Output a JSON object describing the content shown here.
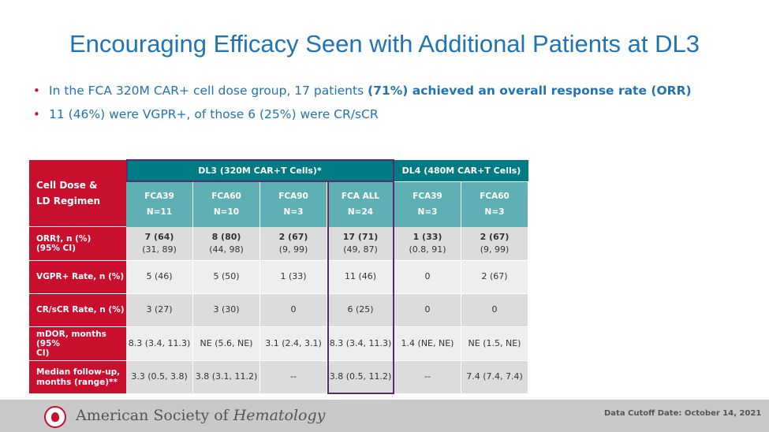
{
  "title": "Encouraging Efficacy Seen with Additional Patients at DL3",
  "bullets": [
    {
      "normal": "In the FCA 320M CAR+ cell dose group, 17 patients ",
      "bold": "(71%) achieved an overall response rate (ORR)"
    },
    {
      "normal": "11 (46%) were VGPR+, of those 6 (25%) were CR/sCR",
      "bold": ""
    }
  ],
  "table": {
    "corner_label": [
      "Cell Dose &",
      "LD Regimen"
    ],
    "group_headers": [
      "DL3 (320M CAR+T Cells)*",
      "DL4 (480M CAR+T Cells)"
    ],
    "columns": [
      {
        "name": "FCA39",
        "n": "N=11"
      },
      {
        "name": "FCA60",
        "n": "N=10"
      },
      {
        "name": "FCA90",
        "n": "N=3"
      },
      {
        "name": "FCA ALL",
        "n": "N=24"
      },
      {
        "name": "FCA39",
        "n": "N=3"
      },
      {
        "name": "FCA60",
        "n": "N=3"
      }
    ],
    "rows": [
      {
        "label": [
          "ORR†, n (%)",
          "(95% CI)"
        ],
        "cells": [
          [
            "7 (64)",
            "(31, 89)"
          ],
          [
            "8 (80)",
            "(44, 98)"
          ],
          [
            "2 (67)",
            "(9, 99)"
          ],
          [
            "17 (71)",
            "(49, 87)"
          ],
          [
            "1 (33)",
            "(0.8, 91)"
          ],
          [
            "2 (67)",
            "(9, 99)"
          ]
        ]
      },
      {
        "label": [
          "VGPR+ Rate, n (%)"
        ],
        "cells": [
          [
            "5 (46)"
          ],
          [
            "5 (50)"
          ],
          [
            "1 (33)"
          ],
          [
            "11 (46)"
          ],
          [
            "0"
          ],
          [
            "2 (67)"
          ]
        ]
      },
      {
        "label": [
          "CR/sCR Rate, n (%)"
        ],
        "cells": [
          [
            "3 (27)"
          ],
          [
            "3 (30)"
          ],
          [
            "0"
          ],
          [
            "6 (25)"
          ],
          [
            "0"
          ],
          [
            "0"
          ]
        ]
      },
      {
        "label": [
          "mDOR, months (95%",
          "CI)"
        ],
        "cells": [
          [
            "8.3 (3.4, 11.3)"
          ],
          [
            "NE (5.6, NE)"
          ],
          [
            "3.1 (2.4, 3.1)"
          ],
          [
            "8.3 (3.4, 11.3)"
          ],
          [
            "1.4 (NE, NE)"
          ],
          [
            "NE (1.5, NE)"
          ]
        ]
      },
      {
        "label": [
          "Median follow-up,",
          "months (range)**"
        ],
        "cells": [
          [
            "3.3 (0.5, 3.8)"
          ],
          [
            "3.8 (3.1, 11.2)"
          ],
          [
            "--"
          ],
          [
            "3.8 (0.5, 11.2)"
          ],
          [
            "--"
          ],
          [
            "7.4 (7.4, 7.4)"
          ]
        ]
      }
    ]
  },
  "footer": {
    "org": "American Society of Hematology",
    "cutoff": "Data Cutoff Date: October 14, 2021"
  }
}
